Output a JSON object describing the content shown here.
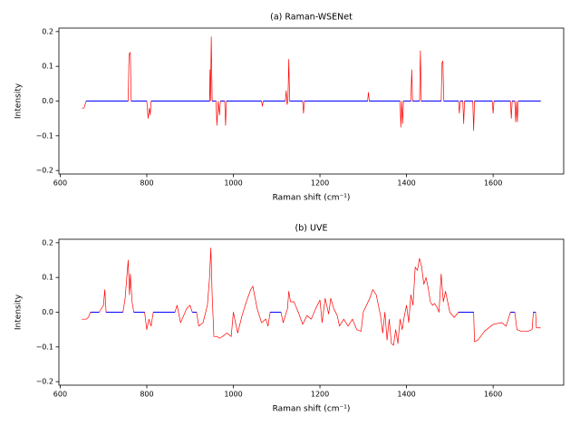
{
  "chart_data": [
    {
      "type": "line",
      "title": "(a) Raman-WSENet",
      "xlabel": "Raman shift (cm⁻¹)",
      "ylabel": "Intensity",
      "xlim": [
        597,
        1763
      ],
      "ylim": [
        -0.21,
        0.21
      ],
      "xticks": [
        600,
        800,
        1000,
        1200,
        1400,
        1600
      ],
      "yticks": [
        {
          "value": -0.2,
          "label": "−0.2"
        },
        {
          "value": -0.1,
          "label": "−0.1"
        },
        {
          "value": 0,
          "label": "0.0"
        },
        0.1,
        0.2
      ],
      "x": [
        650,
        655,
        660,
        700,
        757,
        759,
        762,
        764,
        800,
        803,
        806,
        808,
        810,
        900,
        945,
        946,
        947,
        949,
        951,
        960,
        962,
        965,
        968,
        970,
        980,
        982,
        984,
        1065,
        1067,
        1069,
        1120,
        1122,
        1124,
        1126,
        1128,
        1130,
        1160,
        1162,
        1164,
        1310,
        1312,
        1314,
        1385,
        1387,
        1389,
        1391,
        1393,
        1410,
        1412,
        1414,
        1430,
        1432,
        1434,
        1480,
        1482,
        1484,
        1486,
        1520,
        1522,
        1524,
        1530,
        1532,
        1534,
        1553,
        1555,
        1557,
        1598,
        1600,
        1602,
        1640,
        1642,
        1644,
        1650,
        1652,
        1654,
        1656,
        1658,
        1710
      ],
      "series": [
        {
          "color": "#ff0000",
          "values": [
            -0.02,
            -0.02,
            0,
            0,
            0,
            0.135,
            0.14,
            0,
            0,
            -0.05,
            -0.02,
            -0.04,
            0,
            0,
            0,
            0.09,
            0,
            0.185,
            0,
            0,
            -0.07,
            0,
            -0.04,
            0,
            0,
            -0.07,
            0,
            0,
            -0.015,
            0,
            0,
            0.03,
            -0.01,
            0,
            0.12,
            0,
            0,
            -0.035,
            0,
            0,
            0.025,
            0,
            0,
            -0.075,
            0,
            -0.065,
            0,
            0,
            0.09,
            0,
            0,
            0.145,
            0,
            0,
            0.11,
            0.115,
            0,
            0,
            -0.035,
            0,
            0,
            -0.065,
            0,
            0,
            -0.085,
            0,
            0,
            -0.035,
            0,
            0,
            -0.05,
            0,
            0,
            -0.06,
            0,
            -0.06,
            0,
            0
          ]
        },
        {
          "color": "#0000ff",
          "values": [
            null,
            null,
            0,
            0,
            0,
            null,
            null,
            0,
            0,
            null,
            null,
            null,
            0,
            0,
            0,
            null,
            0,
            null,
            0,
            0,
            null,
            0,
            null,
            0,
            0,
            null,
            0,
            0,
            null,
            0,
            0,
            null,
            null,
            0,
            null,
            0,
            0,
            null,
            0,
            0,
            null,
            0,
            0,
            null,
            0,
            null,
            0,
            0,
            null,
            0,
            0,
            null,
            0,
            0,
            null,
            null,
            0,
            0,
            null,
            0,
            0,
            null,
            0,
            0,
            null,
            0,
            0,
            null,
            0,
            0,
            null,
            0,
            0,
            null,
            0,
            null,
            0,
            0
          ]
        }
      ]
    },
    {
      "type": "line",
      "title": "(b) UVE",
      "xlabel": "Raman shift (cm⁻¹)",
      "ylabel": "Intensity",
      "xlim": [
        597,
        1763
      ],
      "ylim": [
        -0.21,
        0.21
      ],
      "xticks": [
        600,
        800,
        1000,
        1200,
        1400,
        1600
      ],
      "yticks": [
        {
          "value": -0.2,
          "label": "−0.2"
        },
        {
          "value": -0.1,
          "label": "−0.1"
        },
        {
          "value": 0,
          "label": "0.0"
        },
        0.1,
        0.2
      ],
      "x": [
        650,
        660,
        665,
        670,
        680,
        690,
        700,
        703,
        706,
        720,
        730,
        745,
        750,
        757,
        760,
        762,
        766,
        770,
        780,
        795,
        800,
        805,
        810,
        815,
        830,
        850,
        865,
        870,
        878,
        885,
        892,
        900,
        905,
        915,
        920,
        930,
        940,
        945,
        948,
        951,
        955,
        962,
        968,
        975,
        985,
        995,
        1000,
        1010,
        1020,
        1030,
        1040,
        1045,
        1055,
        1065,
        1075,
        1080,
        1085,
        1100,
        1110,
        1115,
        1125,
        1128,
        1132,
        1140,
        1150,
        1160,
        1170,
        1180,
        1190,
        1200,
        1205,
        1212,
        1220,
        1225,
        1232,
        1240,
        1245,
        1255,
        1265,
        1275,
        1285,
        1295,
        1300,
        1315,
        1322,
        1330,
        1340,
        1345,
        1350,
        1355,
        1360,
        1365,
        1370,
        1375,
        1380,
        1385,
        1390,
        1395,
        1400,
        1405,
        1410,
        1415,
        1420,
        1425,
        1430,
        1435,
        1440,
        1445,
        1450,
        1455,
        1460,
        1465,
        1470,
        1475,
        1480,
        1485,
        1490,
        1500,
        1510,
        1520,
        1540,
        1555,
        1557,
        1565,
        1580,
        1600,
        1620,
        1630,
        1640,
        1650,
        1655,
        1665,
        1680,
        1690,
        1693,
        1698,
        1700,
        1710
      ],
      "series": [
        {
          "color": "#ff0000",
          "values": [
            -0.02,
            -0.02,
            -0.015,
            0,
            0,
            0,
            0.02,
            0.065,
            0,
            0,
            0,
            0,
            0.04,
            0.15,
            0.05,
            0.11,
            0.03,
            0,
            0,
            0,
            -0.05,
            -0.02,
            -0.04,
            0,
            0,
            0,
            0,
            0.02,
            -0.03,
            -0.01,
            0.01,
            0.02,
            0,
            0,
            -0.04,
            -0.03,
            0.02,
            0.1,
            0.185,
            0.05,
            -0.07,
            -0.07,
            -0.075,
            -0.07,
            -0.06,
            -0.07,
            0,
            -0.06,
            -0.01,
            0.03,
            0.065,
            0.075,
            0.01,
            -0.03,
            -0.02,
            -0.04,
            0,
            0,
            0,
            -0.03,
            0.01,
            0.06,
            0.03,
            0.03,
            0,
            -0.035,
            -0.01,
            -0.02,
            0.01,
            0.035,
            -0.03,
            0.04,
            -0.005,
            0.04,
            0.01,
            -0.01,
            -0.04,
            -0.02,
            -0.04,
            -0.02,
            -0.05,
            -0.055,
            0,
            0.04,
            0.065,
            0.05,
            -0.01,
            -0.06,
            0,
            -0.08,
            -0.02,
            -0.09,
            -0.095,
            -0.05,
            -0.09,
            -0.02,
            -0.05,
            -0.01,
            0.02,
            -0.03,
            0.05,
            0.02,
            0.13,
            0.12,
            0.155,
            0.13,
            0.08,
            0.1,
            0.07,
            0.03,
            0.02,
            0.025,
            0.015,
            0,
            0.11,
            0.03,
            0.06,
            0,
            -0.015,
            0,
            0,
            0,
            -0.085,
            -0.08,
            -0.055,
            -0.035,
            -0.03,
            -0.04,
            0,
            0,
            -0.05,
            -0.055,
            -0.055,
            -0.05,
            0,
            0,
            -0.045,
            -0.045
          ]
        },
        {
          "color": "#0000ff",
          "values": [
            null,
            null,
            null,
            0,
            0,
            0,
            null,
            null,
            0,
            0,
            0,
            0,
            null,
            null,
            null,
            null,
            null,
            0,
            0,
            0,
            null,
            null,
            null,
            0,
            0,
            0,
            0,
            null,
            null,
            null,
            null,
            null,
            0,
            0,
            null,
            null,
            null,
            null,
            null,
            null,
            null,
            null,
            null,
            null,
            null,
            null,
            0,
            null,
            null,
            null,
            null,
            null,
            null,
            null,
            null,
            null,
            0,
            0,
            0,
            null,
            null,
            null,
            null,
            null,
            0,
            null,
            null,
            null,
            null,
            null,
            null,
            null,
            null,
            null,
            null,
            null,
            null,
            null,
            null,
            null,
            null,
            null,
            0,
            null,
            null,
            null,
            null,
            null,
            0,
            null,
            null,
            null,
            null,
            null,
            null,
            null,
            null,
            null,
            null,
            null,
            null,
            null,
            null,
            null,
            null,
            null,
            null,
            null,
            null,
            null,
            null,
            null,
            null,
            0,
            null,
            null,
            null,
            0,
            null,
            0,
            0,
            0,
            null,
            null,
            null,
            null,
            null,
            null,
            0,
            0,
            null,
            null,
            null,
            null,
            0,
            0,
            null,
            null
          ]
        }
      ]
    }
  ]
}
